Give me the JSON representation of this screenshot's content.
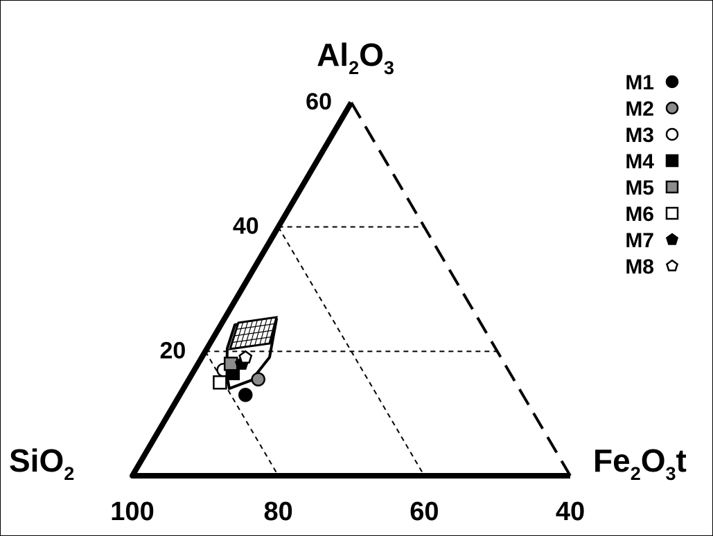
{
  "chart_data": {
    "type": "ternary",
    "apices": {
      "top": {
        "base": "Al",
        "sub1": "2",
        "mid": "O",
        "sub2": "3",
        "tail": ""
      },
      "left": {
        "base": "SiO",
        "sub1": "2",
        "mid": "",
        "sub2": "",
        "tail": ""
      },
      "right": {
        "base": "Fe",
        "sub1": "2",
        "mid": "O",
        "sub2": "3",
        "tail": "t"
      }
    },
    "left_axis_ticks": [
      "60",
      "40",
      "20"
    ],
    "bottom_axis_ticks": [
      "100",
      "80",
      "60",
      "40"
    ],
    "legend_position": "top-right",
    "legend": [
      {
        "label": "M1",
        "marker": "circle",
        "fill": "#000000"
      },
      {
        "label": "M2",
        "marker": "circle",
        "fill": "#8c8c8c"
      },
      {
        "label": "M3",
        "marker": "circle",
        "fill": "#ffffff"
      },
      {
        "label": "M4",
        "marker": "square",
        "fill": "#000000"
      },
      {
        "label": "M5",
        "marker": "square",
        "fill": "#8c8c8c"
      },
      {
        "label": "M6",
        "marker": "square",
        "fill": "#ffffff"
      },
      {
        "label": "M7",
        "marker": "pentagon",
        "fill": "#000000"
      },
      {
        "label": "M8",
        "marker": "pentagon",
        "fill": "#ffffff"
      }
    ],
    "points": [
      {
        "label": "M1",
        "SiO2": 78,
        "Al2O3": 13
      },
      {
        "label": "M2",
        "SiO2": 75,
        "Al2O3": 15.5
      },
      {
        "label": "M3",
        "SiO2": 79,
        "Al2O3": 17
      },
      {
        "label": "M4",
        "SiO2": 78,
        "Al2O3": 16.5
      },
      {
        "label": "M5",
        "SiO2": 77.5,
        "Al2O3": 18
      },
      {
        "label": "M6",
        "SiO2": 80.5,
        "Al2O3": 15
      },
      {
        "label": "M7",
        "SiO2": 76,
        "Al2O3": 18
      },
      {
        "label": "M8",
        "SiO2": 75,
        "Al2O3": 19
      }
    ],
    "ranges": {
      "SiO2": [
        40,
        100
      ],
      "Al2O3": [
        0,
        60
      ]
    },
    "grid": true
  }
}
